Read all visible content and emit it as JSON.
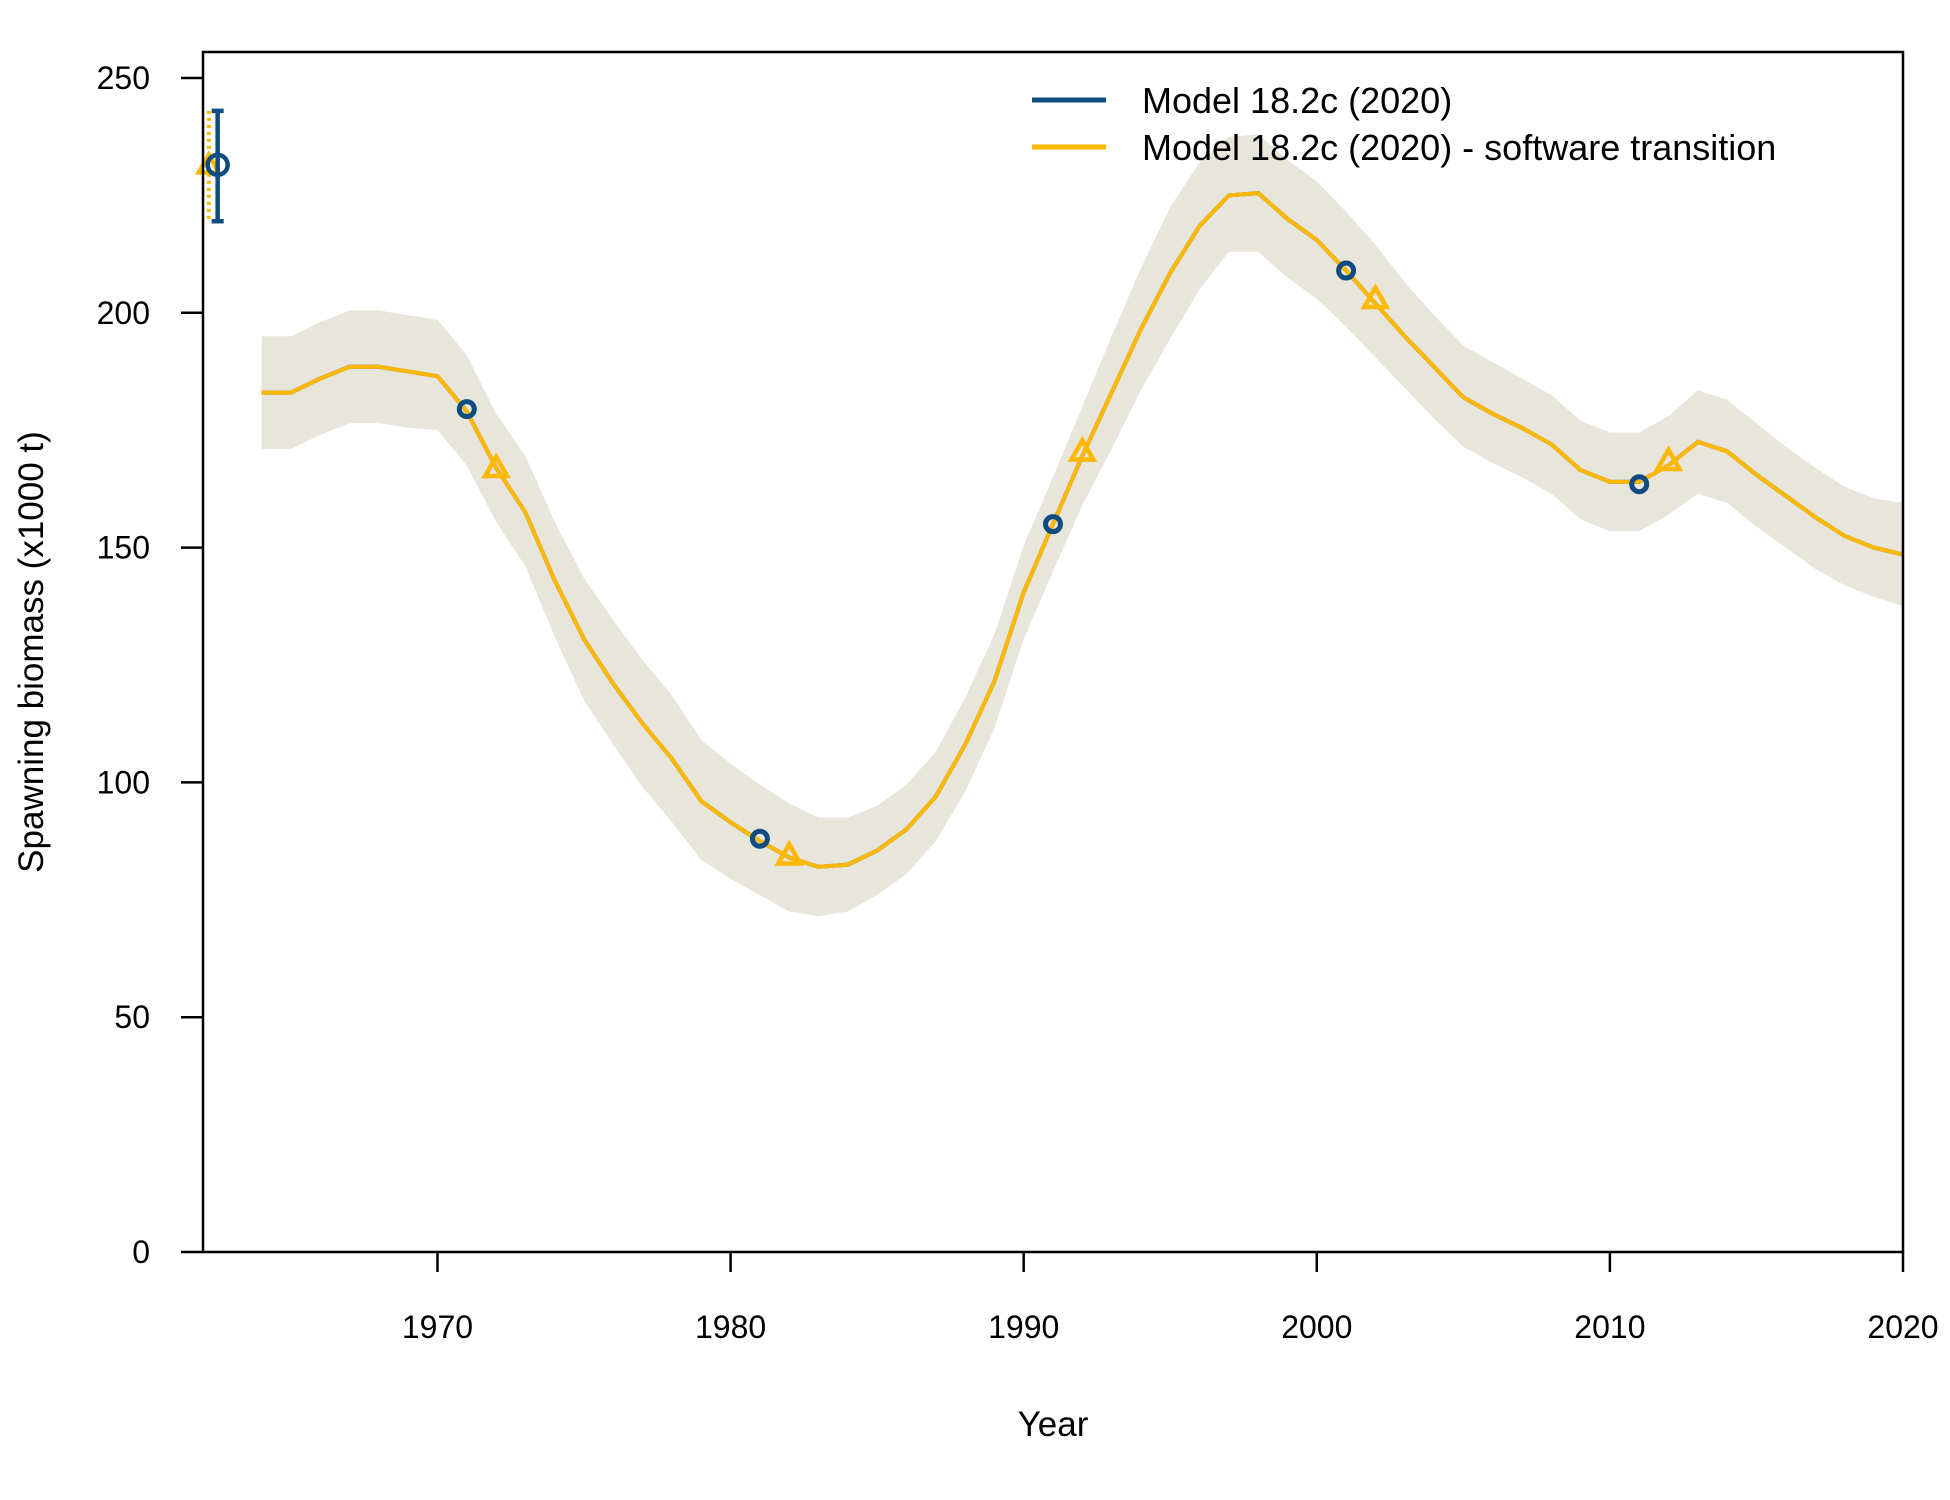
{
  "chart_data": {
    "type": "line",
    "xlabel": "Year",
    "ylabel": "Spawning biomass (x1000 t)",
    "xlim": [
      1962,
      2020
    ],
    "ylim": [
      0,
      255
    ],
    "x_ticks": [
      1970,
      1980,
      1990,
      2000,
      2010,
      2020
    ],
    "y_ticks": [
      0,
      50,
      100,
      150,
      200,
      250
    ],
    "grid": false,
    "legend_position": "top-right",
    "colors": {
      "series1": "#0f4c81",
      "series2": "#ffb800",
      "band": "#e8e5da"
    },
    "series": [
      {
        "name": "Model 18.2c (2020)",
        "marker": "circle",
        "color": "#0f4c81",
        "marker_x": [
          1971,
          1981,
          1991,
          2001,
          2011
        ],
        "marker_y": [
          179.5,
          88.0,
          155.0,
          209.0,
          163.5
        ],
        "initial_point": {
          "x": 1962.5,
          "y": 231.5,
          "ci_low": 219.5,
          "ci_high": 243.0
        }
      },
      {
        "name": "Model 18.2c (2020) - software transition",
        "marker": "triangle",
        "color": "#ffb800",
        "marker_x": [
          1972,
          1982,
          1992,
          2002,
          2012
        ],
        "marker_y": [
          167.0,
          84.5,
          170.5,
          203.0,
          168.5
        ],
        "initial_point": {
          "x": 1962.2,
          "y": 231.5,
          "ci_low": 219.5,
          "ci_high": 243.0
        }
      }
    ],
    "years": [
      1964,
      1965,
      1966,
      1967,
      1968,
      1969,
      1970,
      1971,
      1972,
      1973,
      1974,
      1975,
      1976,
      1977,
      1978,
      1979,
      1980,
      1981,
      1982,
      1983,
      1984,
      1985,
      1986,
      1987,
      1988,
      1989,
      1990,
      1991,
      1992,
      1993,
      1994,
      1995,
      1996,
      1997,
      1998,
      1999,
      2000,
      2001,
      2002,
      2003,
      2004,
      2005,
      2006,
      2007,
      2008,
      2009,
      2010,
      2011,
      2012,
      2013,
      2014,
      2015,
      2016,
      2017,
      2018,
      2019,
      2020
    ],
    "values": [
      183.0,
      183.0,
      186.0,
      188.5,
      188.5,
      187.5,
      186.5,
      179.0,
      167.0,
      157.5,
      143.0,
      130.5,
      121.0,
      112.5,
      105.0,
      96.0,
      91.5,
      87.5,
      84.0,
      82.0,
      82.5,
      85.5,
      90.0,
      97.0,
      108.0,
      121.5,
      140.5,
      155.0,
      169.5,
      183.0,
      196.5,
      208.5,
      218.5,
      225.0,
      225.5,
      220.0,
      215.5,
      209.0,
      202.0,
      195.0,
      188.5,
      182.0,
      178.5,
      175.5,
      172.0,
      166.5,
      164.0,
      164.0,
      167.5,
      172.5,
      170.5,
      165.5,
      161.0,
      156.5,
      152.5,
      150.0,
      148.5
    ],
    "band_low": [
      171.0,
      171.0,
      174.0,
      176.5,
      176.5,
      175.5,
      175.0,
      167.5,
      155.5,
      146.0,
      131.0,
      117.5,
      108.0,
      99.0,
      91.5,
      83.5,
      79.5,
      76.0,
      72.5,
      71.5,
      72.5,
      76.0,
      80.5,
      87.5,
      98.0,
      111.5,
      130.5,
      145.0,
      159.0,
      171.0,
      183.5,
      194.5,
      205.0,
      213.0,
      213.0,
      207.5,
      203.0,
      197.0,
      190.5,
      184.0,
      177.5,
      171.5,
      168.0,
      165.0,
      161.5,
      156.0,
      153.5,
      153.5,
      157.0,
      161.5,
      159.5,
      154.5,
      150.0,
      145.5,
      142.0,
      139.5,
      137.5
    ],
    "band_high": [
      195.0,
      195.0,
      198.0,
      200.5,
      200.5,
      199.5,
      198.5,
      191.0,
      178.5,
      169.5,
      155.5,
      143.5,
      134.5,
      126.0,
      118.5,
      109.0,
      104.0,
      99.5,
      95.5,
      92.5,
      92.5,
      95.0,
      99.5,
      106.5,
      118.0,
      131.5,
      150.5,
      165.0,
      180.0,
      195.0,
      209.5,
      222.5,
      232.0,
      237.5,
      238.0,
      232.5,
      228.0,
      221.5,
      214.5,
      206.5,
      199.5,
      193.0,
      189.5,
      186.0,
      182.5,
      177.0,
      174.5,
      174.5,
      178.0,
      183.5,
      181.5,
      176.5,
      171.5,
      167.0,
      163.0,
      160.5,
      159.5
    ]
  }
}
